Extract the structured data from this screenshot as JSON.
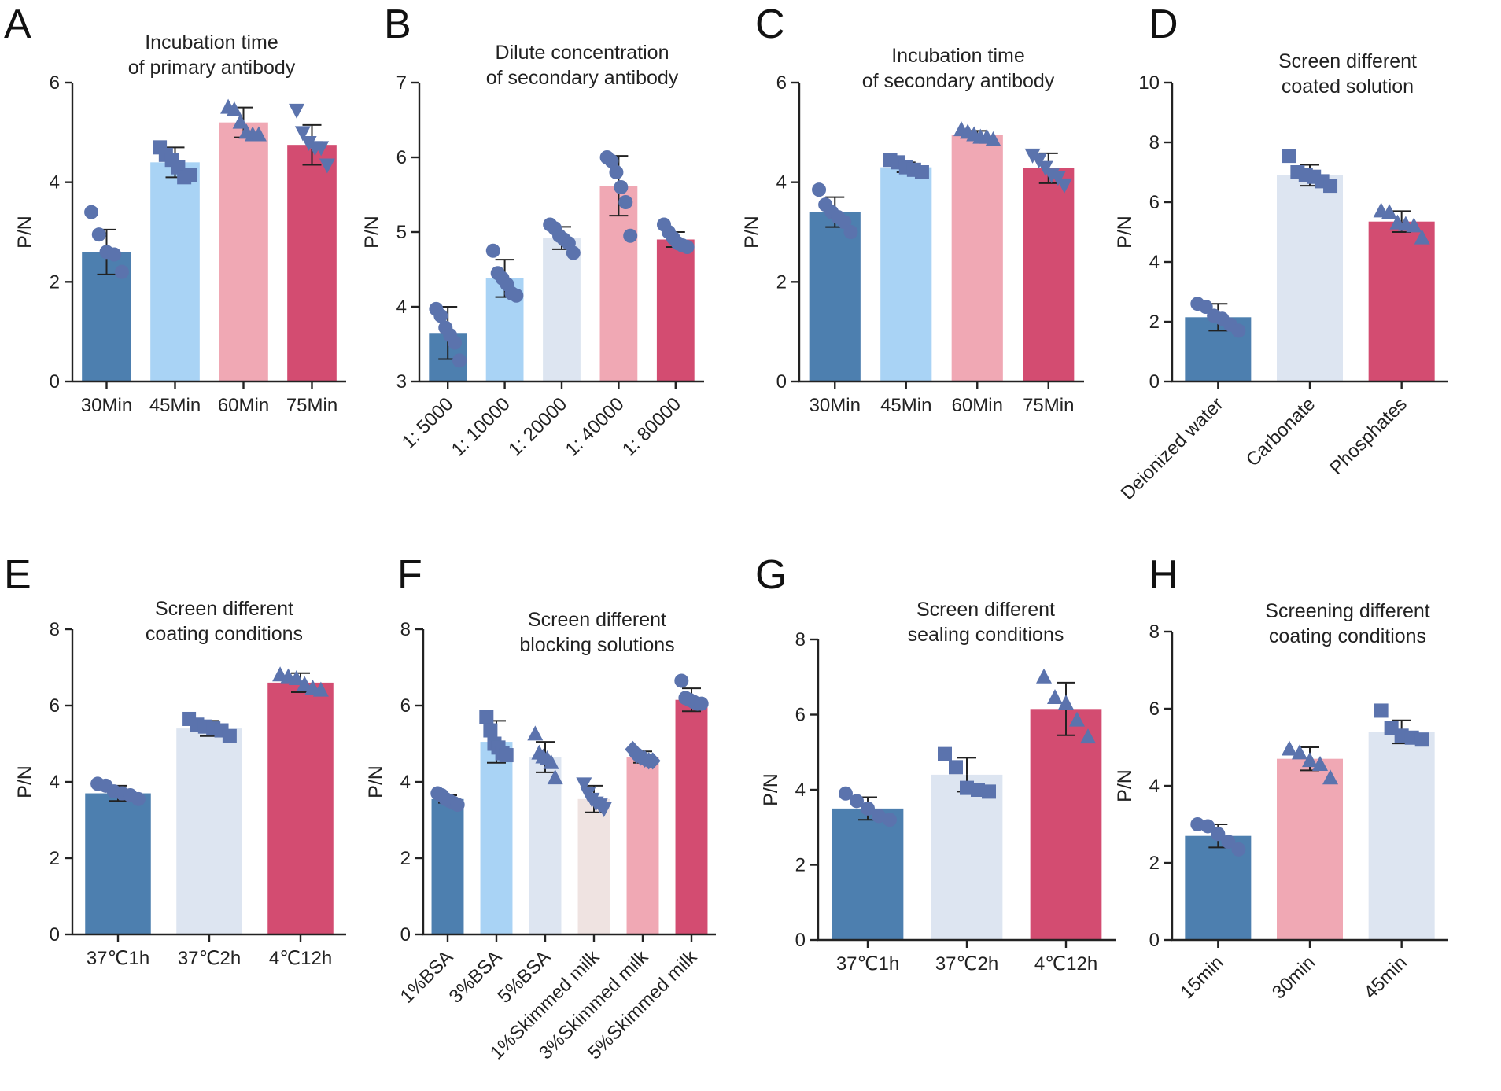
{
  "colors": {
    "dark_blue": "#4d7faf",
    "light_blue": "#a9d3f5",
    "pale_blue": "#dde5f1",
    "pink": "#f0a8b4",
    "crimson": "#d34c71",
    "beige": "#efe3e1",
    "point": "#5b73ad",
    "axis": "#222222"
  },
  "chart_data": [
    {
      "letter": "A",
      "type": "bar",
      "title": [
        "Incubation time",
        "of primary antibody"
      ],
      "ylabel": "P/N",
      "xlabel": "",
      "ylim": [
        0,
        6
      ],
      "yticks": [
        0,
        2,
        4,
        6
      ],
      "categories": [
        "30Min",
        "45Min",
        "60Min",
        "75Min"
      ],
      "rotate_labels": false,
      "values": [
        2.6,
        4.4,
        5.2,
        4.75
      ],
      "errors": [
        0.45,
        0.3,
        0.3,
        0.4
      ],
      "bar_colors": [
        "dark_blue",
        "light_blue",
        "pink",
        "crimson"
      ],
      "markers": [
        "circle",
        "square",
        "triangle",
        "triangle-down"
      ],
      "points": [
        [
          3.4,
          2.95,
          2.6,
          2.55,
          2.2
        ],
        [
          4.7,
          4.55,
          4.45,
          4.3,
          4.1,
          4.15
        ],
        [
          5.5,
          5.45,
          5.2,
          5.0,
          4.95,
          4.95
        ],
        [
          5.45,
          5.0,
          4.8,
          4.7,
          4.7,
          4.35
        ]
      ]
    },
    {
      "letter": "B",
      "type": "bar",
      "title": [
        "Dilute concentration",
        "of secondary antibody"
      ],
      "ylabel": "P/N",
      "xlabel": "",
      "ylim": [
        3,
        7
      ],
      "yticks": [
        3,
        4,
        5,
        6,
        7
      ],
      "categories": [
        "1: 5000",
        "1: 10000",
        "1: 20000",
        "1: 40000",
        "1: 80000"
      ],
      "rotate_labels": true,
      "values": [
        3.65,
        4.38,
        4.92,
        5.62,
        4.9
      ],
      "errors": [
        0.35,
        0.25,
        0.15,
        0.4,
        0.1
      ],
      "bar_colors": [
        "dark_blue",
        "light_blue",
        "pale_blue",
        "pink",
        "crimson"
      ],
      "markers": [
        "circle",
        "circle",
        "circle",
        "circle",
        "circle"
      ],
      "points": [
        [
          3.97,
          3.88,
          3.72,
          3.62,
          3.52,
          3.28
        ],
        [
          4.75,
          4.45,
          4.38,
          4.3,
          4.18,
          4.15
        ],
        [
          5.1,
          5.05,
          4.95,
          4.9,
          4.85,
          4.72
        ],
        [
          6.0,
          5.95,
          5.8,
          5.6,
          5.4,
          4.95
        ],
        [
          5.1,
          5.0,
          4.92,
          4.85,
          4.82,
          4.8
        ]
      ]
    },
    {
      "letter": "C",
      "type": "bar",
      "title": [
        "Incubation time",
        "of secondary antibody"
      ],
      "ylabel": "P/N",
      "xlabel": "",
      "ylim": [
        0,
        6
      ],
      "yticks": [
        0,
        2,
        4,
        6
      ],
      "categories": [
        "30Min",
        "45Min",
        "60Min",
        "75Min"
      ],
      "rotate_labels": false,
      "values": [
        3.4,
        4.3,
        4.95,
        4.28
      ],
      "errors": [
        0.3,
        0.1,
        0.08,
        0.3
      ],
      "bar_colors": [
        "dark_blue",
        "light_blue",
        "pink",
        "crimson"
      ],
      "markers": [
        "circle",
        "square",
        "triangle",
        "triangle-down"
      ],
      "points": [
        [
          3.85,
          3.55,
          3.4,
          3.3,
          3.2,
          3.0
        ],
        [
          4.45,
          4.4,
          4.3,
          4.25,
          4.2
        ],
        [
          5.05,
          5.0,
          4.95,
          4.9,
          4.9,
          4.85
        ],
        [
          4.55,
          4.45,
          4.3,
          4.15,
          4.1,
          3.95
        ]
      ]
    },
    {
      "letter": "D",
      "type": "bar",
      "title": [
        "Screen different",
        "coated solution"
      ],
      "ylabel": "P/N",
      "xlabel": "",
      "ylim": [
        0,
        10
      ],
      "yticks": [
        0,
        2,
        4,
        6,
        8,
        10
      ],
      "categories": [
        "Deionized water",
        "Carbonate",
        "Phosphates"
      ],
      "rotate_labels": true,
      "values": [
        2.15,
        6.9,
        5.35
      ],
      "errors": [
        0.45,
        0.35,
        0.35
      ],
      "bar_colors": [
        "dark_blue",
        "pale_blue",
        "crimson"
      ],
      "markers": [
        "circle",
        "square",
        "triangle"
      ],
      "points": [
        [
          2.6,
          2.5,
          2.2,
          2.1,
          1.9,
          1.7
        ],
        [
          7.55,
          7.0,
          6.9,
          6.85,
          6.7,
          6.55
        ],
        [
          5.7,
          5.65,
          5.3,
          5.25,
          5.2,
          4.8
        ]
      ]
    },
    {
      "letter": "E",
      "type": "bar",
      "title": [
        "Screen different",
        "coating conditions"
      ],
      "ylabel": "P/N",
      "xlabel": "",
      "ylim": [
        0,
        8
      ],
      "yticks": [
        0,
        2,
        4,
        6,
        8
      ],
      "categories": [
        "37℃1h",
        "37℃2h",
        "4℃12h"
      ],
      "rotate_labels": false,
      "values": [
        3.7,
        5.4,
        6.6
      ],
      "errors": [
        0.2,
        0.2,
        0.25
      ],
      "bar_colors": [
        "dark_blue",
        "pale_blue",
        "crimson"
      ],
      "markers": [
        "circle",
        "square",
        "triangle"
      ],
      "points": [
        [
          3.95,
          3.9,
          3.75,
          3.7,
          3.65,
          3.55
        ],
        [
          5.65,
          5.5,
          5.45,
          5.4,
          5.35,
          5.2
        ],
        [
          6.8,
          6.75,
          6.7,
          6.55,
          6.45,
          6.4
        ]
      ]
    },
    {
      "letter": "F",
      "type": "bar",
      "title": [
        "Screen different",
        "blocking solutions"
      ],
      "ylabel": "P/N",
      "xlabel": "",
      "ylim": [
        0,
        8
      ],
      "yticks": [
        0,
        2,
        4,
        6,
        8
      ],
      "categories": [
        "1%BSA",
        "3%BSA",
        "5%BSA",
        "1%Skimmed milk",
        "3%Skimmed milk",
        "5%Skimmed milk"
      ],
      "rotate_labels": true,
      "values": [
        3.55,
        5.05,
        4.65,
        3.55,
        4.65,
        6.15
      ],
      "errors": [
        0.1,
        0.55,
        0.4,
        0.35,
        0.15,
        0.3
      ],
      "bar_colors": [
        "dark_blue",
        "light_blue",
        "pale_blue",
        "beige",
        "pink",
        "crimson"
      ],
      "markers": [
        "circle",
        "square",
        "triangle",
        "triangle-down",
        "diamond",
        "circle"
      ],
      "points": [
        [
          3.7,
          3.65,
          3.55,
          3.5,
          3.45,
          3.4
        ],
        [
          5.7,
          5.35,
          5.0,
          4.9,
          4.75,
          4.7
        ],
        [
          5.25,
          4.75,
          4.65,
          4.6,
          4.5,
          4.1
        ],
        [
          3.95,
          3.7,
          3.55,
          3.45,
          3.4,
          3.3
        ],
        [
          4.85,
          4.7,
          4.65,
          4.6,
          4.55,
          4.55
        ],
        [
          6.65,
          6.2,
          6.15,
          6.1,
          6.05,
          6.05
        ]
      ]
    },
    {
      "letter": "G",
      "type": "bar",
      "title": [
        "Screen different",
        "sealing conditions"
      ],
      "ylabel": "P/N",
      "xlabel": "",
      "ylim": [
        0,
        8
      ],
      "yticks": [
        0,
        2,
        4,
        6,
        8
      ],
      "categories": [
        "37℃1h",
        "37℃2h",
        "4℃12h"
      ],
      "rotate_labels": false,
      "values": [
        3.5,
        4.4,
        6.15
      ],
      "errors": [
        0.3,
        0.45,
        0.7
      ],
      "bar_colors": [
        "dark_blue",
        "pale_blue",
        "crimson"
      ],
      "markers": [
        "circle",
        "square",
        "triangle"
      ],
      "points": [
        [
          3.9,
          3.7,
          3.5,
          3.3,
          3.2
        ],
        [
          4.95,
          4.6,
          4.05,
          4.0,
          3.95
        ],
        [
          7.0,
          6.45,
          6.3,
          5.85,
          5.4
        ]
      ]
    },
    {
      "letter": "H",
      "type": "bar",
      "title": [
        "Screening different",
        "coating conditions"
      ],
      "ylabel": "P/N",
      "xlabel": "",
      "ylim": [
        0,
        8
      ],
      "yticks": [
        0,
        2,
        4,
        6,
        8
      ],
      "categories": [
        "15min",
        "30min",
        "45min"
      ],
      "rotate_labels": true,
      "values": [
        2.7,
        4.7,
        5.4
      ],
      "errors": [
        0.3,
        0.3,
        0.3
      ],
      "bar_colors": [
        "dark_blue",
        "pink",
        "pale_blue"
      ],
      "markers": [
        "circle",
        "triangle",
        "square"
      ],
      "points": [
        [
          3.0,
          2.95,
          2.75,
          2.55,
          2.35
        ],
        [
          4.95,
          4.85,
          4.65,
          4.55,
          4.2
        ],
        [
          5.95,
          5.5,
          5.3,
          5.25,
          5.2
        ]
      ]
    }
  ]
}
